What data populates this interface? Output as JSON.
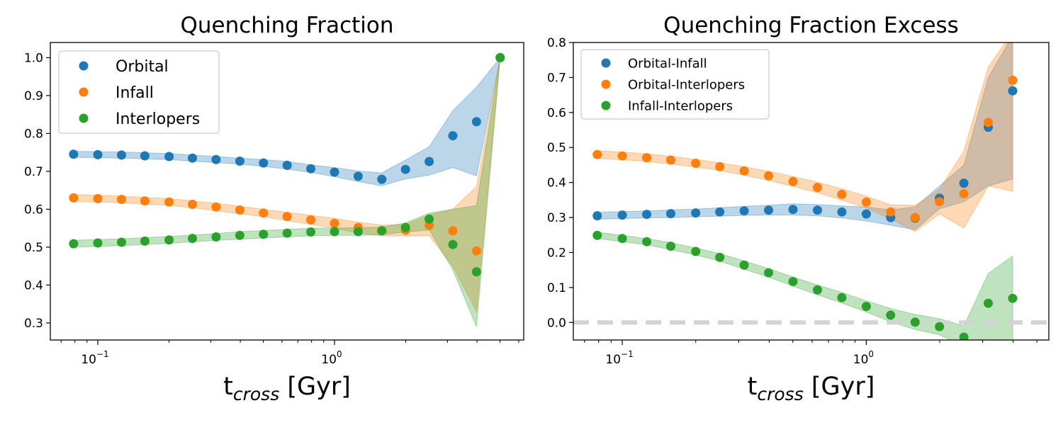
{
  "chart_data": [
    {
      "type": "scatter",
      "title": "Quenching Fraction",
      "xlabel": "t",
      "xlabel_sub": "cross",
      "xlabel_unit": " [Gyr]",
      "xscale": "log",
      "xlim": [
        0.063,
        6.3
      ],
      "ylim": [
        0.255,
        1.04
      ],
      "yticks": [
        "0.3",
        "0.4",
        "0.5",
        "0.6",
        "0.7",
        "0.8",
        "0.9",
        "1.0"
      ],
      "xticks_major": [
        {
          "base": "10",
          "exp": "−1",
          "value": 0.1
        },
        {
          "base": "10",
          "exp": "0",
          "value": 1
        }
      ],
      "legend_position": "top-left",
      "series": [
        {
          "name": "Orbital",
          "color": "#1f77b4",
          "x": [
            0.079,
            0.1,
            0.126,
            0.158,
            0.2,
            0.251,
            0.316,
            0.398,
            0.501,
            0.631,
            0.794,
            1.0,
            1.259,
            1.585,
            1.995,
            2.512,
            3.162,
            3.981,
            5.012
          ],
          "y": [
            0.745,
            0.744,
            0.743,
            0.741,
            0.739,
            0.735,
            0.731,
            0.727,
            0.722,
            0.716,
            0.707,
            0.698,
            0.687,
            0.679,
            0.705,
            0.726,
            0.794,
            0.831,
            1.0
          ],
          "band_lower": [
            0.737,
            0.736,
            0.735,
            0.733,
            0.731,
            0.727,
            0.723,
            0.719,
            0.713,
            0.706,
            0.697,
            0.686,
            0.673,
            0.662,
            0.68,
            0.69,
            0.71,
            0.688,
            1.0
          ],
          "band_upper": [
            0.753,
            0.752,
            0.751,
            0.749,
            0.747,
            0.743,
            0.739,
            0.735,
            0.731,
            0.726,
            0.717,
            0.71,
            0.701,
            0.696,
            0.73,
            0.765,
            0.86,
            0.922,
            1.0
          ]
        },
        {
          "name": "Infall",
          "color": "#ff7f0e",
          "x": [
            0.079,
            0.1,
            0.126,
            0.158,
            0.2,
            0.251,
            0.316,
            0.398,
            0.501,
            0.631,
            0.794,
            1.0,
            1.259,
            1.585,
            1.995,
            2.512,
            3.162,
            3.981,
            5.012
          ],
          "y": [
            0.63,
            0.628,
            0.626,
            0.622,
            0.619,
            0.613,
            0.606,
            0.598,
            0.59,
            0.581,
            0.572,
            0.563,
            0.552,
            0.544,
            0.545,
            0.558,
            0.543,
            0.49,
            1.0
          ],
          "band_lower": [
            0.621,
            0.619,
            0.617,
            0.613,
            0.61,
            0.604,
            0.596,
            0.588,
            0.58,
            0.57,
            0.56,
            0.55,
            0.538,
            0.53,
            0.53,
            0.53,
            0.45,
            0.33,
            1.0
          ],
          "band_upper": [
            0.639,
            0.637,
            0.635,
            0.631,
            0.628,
            0.622,
            0.616,
            0.608,
            0.6,
            0.592,
            0.584,
            0.576,
            0.566,
            0.558,
            0.56,
            0.585,
            0.6,
            0.66,
            1.0
          ]
        },
        {
          "name": "Interlopers",
          "color": "#2ca02c",
          "x": [
            0.079,
            0.1,
            0.126,
            0.158,
            0.2,
            0.251,
            0.316,
            0.398,
            0.501,
            0.631,
            0.794,
            1.0,
            1.259,
            1.585,
            1.995,
            2.512,
            3.162,
            3.981,
            5.012
          ],
          "y": [
            0.509,
            0.511,
            0.513,
            0.516,
            0.519,
            0.523,
            0.527,
            0.531,
            0.534,
            0.537,
            0.54,
            0.541,
            0.541,
            0.543,
            0.552,
            0.574,
            0.507,
            0.435,
            1.0
          ],
          "band_lower": [
            0.5,
            0.502,
            0.504,
            0.507,
            0.51,
            0.514,
            0.518,
            0.521,
            0.524,
            0.527,
            0.53,
            0.531,
            0.531,
            0.533,
            0.54,
            0.545,
            0.44,
            0.29,
            1.0
          ],
          "band_upper": [
            0.518,
            0.52,
            0.522,
            0.525,
            0.528,
            0.532,
            0.536,
            0.541,
            0.544,
            0.547,
            0.55,
            0.551,
            0.551,
            0.553,
            0.564,
            0.59,
            0.6,
            0.61,
            1.0
          ]
        }
      ]
    },
    {
      "type": "scatter",
      "title": "Quenching Fraction Excess",
      "xlabel": "t",
      "xlabel_sub": "cross",
      "xlabel_unit": " [Gyr]",
      "xscale": "log",
      "xlim": [
        0.063,
        5.6
      ],
      "ylim": [
        -0.05,
        0.8
      ],
      "yticks": [
        "0.0",
        "0.1",
        "0.2",
        "0.3",
        "0.4",
        "0.5",
        "0.6",
        "0.7",
        "0.8"
      ],
      "xticks_major": [
        {
          "base": "10",
          "exp": "−1",
          "value": 0.1
        },
        {
          "base": "10",
          "exp": "0",
          "value": 1
        }
      ],
      "legend_position": "top-left",
      "reference_line": {
        "y": 0,
        "color": "#d3d3d3",
        "style": "dashed"
      },
      "series": [
        {
          "name": "Orbital-Infall",
          "color": "#1f77b4",
          "x": [
            0.079,
            0.1,
            0.126,
            0.158,
            0.2,
            0.251,
            0.316,
            0.398,
            0.501,
            0.631,
            0.794,
            1.0,
            1.259,
            1.585,
            1.995,
            2.512,
            3.162,
            3.981
          ],
          "y": [
            0.305,
            0.307,
            0.309,
            0.311,
            0.313,
            0.316,
            0.319,
            0.321,
            0.323,
            0.321,
            0.316,
            0.31,
            0.3,
            0.298,
            0.355,
            0.398,
            0.558,
            0.662
          ],
          "band_lower": [
            0.295,
            0.297,
            0.299,
            0.3,
            0.302,
            0.304,
            0.306,
            0.307,
            0.307,
            0.305,
            0.299,
            0.29,
            0.278,
            0.265,
            0.325,
            0.345,
            0.39,
            0.41
          ],
          "band_upper": [
            0.315,
            0.317,
            0.319,
            0.322,
            0.324,
            0.328,
            0.332,
            0.335,
            0.339,
            0.337,
            0.333,
            0.33,
            0.322,
            0.33,
            0.39,
            0.45,
            0.7,
            0.82
          ]
        },
        {
          "name": "Orbital-Interlopers",
          "color": "#ff7f0e",
          "x": [
            0.079,
            0.1,
            0.126,
            0.158,
            0.2,
            0.251,
            0.316,
            0.398,
            0.501,
            0.631,
            0.794,
            1.0,
            1.259,
            1.585,
            1.995,
            2.512,
            3.162,
            3.981
          ],
          "y": [
            0.48,
            0.476,
            0.471,
            0.464,
            0.455,
            0.445,
            0.433,
            0.419,
            0.403,
            0.386,
            0.366,
            0.344,
            0.316,
            0.3,
            0.345,
            0.368,
            0.572,
            0.692
          ],
          "band_lower": [
            0.469,
            0.465,
            0.46,
            0.453,
            0.444,
            0.434,
            0.421,
            0.406,
            0.389,
            0.371,
            0.35,
            0.327,
            0.296,
            0.26,
            0.31,
            0.27,
            0.39,
            0.375
          ],
          "band_upper": [
            0.491,
            0.487,
            0.482,
            0.475,
            0.466,
            0.456,
            0.445,
            0.432,
            0.417,
            0.401,
            0.382,
            0.361,
            0.336,
            0.335,
            0.38,
            0.49,
            0.73,
            0.83
          ]
        },
        {
          "name": "Infall-Interlopers",
          "color": "#2ca02c",
          "x": [
            0.079,
            0.1,
            0.126,
            0.158,
            0.2,
            0.251,
            0.316,
            0.398,
            0.501,
            0.631,
            0.794,
            1.0,
            1.259,
            1.585,
            1.995,
            2.512,
            3.162,
            3.981
          ],
          "y": [
            0.249,
            0.24,
            0.231,
            0.218,
            0.203,
            0.186,
            0.164,
            0.142,
            0.117,
            0.093,
            0.071,
            0.046,
            0.021,
            0.001,
            -0.012,
            -0.042,
            0.055,
            0.069
          ],
          "band_lower": [
            0.24,
            0.231,
            0.222,
            0.208,
            0.193,
            0.175,
            0.152,
            0.13,
            0.104,
            0.079,
            0.056,
            0.03,
            0.002,
            -0.02,
            -0.035,
            -0.07,
            -0.07,
            -0.07
          ],
          "band_upper": [
            0.258,
            0.249,
            0.24,
            0.228,
            0.213,
            0.197,
            0.176,
            0.154,
            0.13,
            0.107,
            0.086,
            0.062,
            0.04,
            0.023,
            0.011,
            -0.01,
            0.14,
            0.19
          ]
        }
      ]
    }
  ]
}
